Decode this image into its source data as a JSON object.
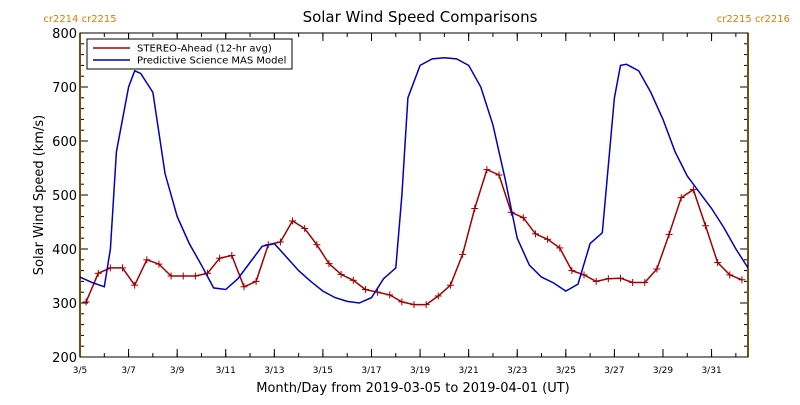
{
  "chart_data": {
    "type": "line",
    "title": "Solar Wind Speed Comparisons",
    "xlabel": "Month/Day from 2019-03-05 to 2019-04-01 (UT)",
    "ylabel": "Solar Wind Speed (km/s)",
    "xlim": [
      "2019-03-05",
      "2019-04-01 12:00"
    ],
    "ylim": [
      200,
      800
    ],
    "yticks": [
      200,
      300,
      400,
      500,
      600,
      700,
      800
    ],
    "xticks": [
      "2019-03-05",
      "2019-03-07",
      "2019-03-09",
      "2019-03-11",
      "2019-03-13",
      "2019-03-15",
      "2019-03-17",
      "2019-03-19",
      "2019-03-21",
      "2019-03-23",
      "2019-03-25",
      "2019-03-27",
      "2019-03-29",
      "2019-03-31"
    ],
    "xticklabels": [
      "3/5",
      "3/7",
      "3/9",
      "3/11",
      "3/13",
      "3/15",
      "3/17",
      "3/19",
      "3/21",
      "3/23",
      "3/25",
      "3/27",
      "3/29",
      "3/31"
    ],
    "legend_position": "top-left",
    "grid": false,
    "carrington_markers": [
      {
        "date": "2019-03-05",
        "labels": [
          "cr2214",
          "cr2215"
        ],
        "color": "#e8a020"
      },
      {
        "date": "2019-04-01 12:00",
        "labels": [
          "cr2215",
          "cr2216"
        ],
        "color": "#e8a020"
      }
    ],
    "series": [
      {
        "name": "STEREO-Ahead (12-hr avg)",
        "color": "#a00000",
        "marker": "+",
        "x": [
          "2019-03-05 06:00",
          "2019-03-05 18:00",
          "2019-03-06 06:00",
          "2019-03-06 18:00",
          "2019-03-07 06:00",
          "2019-03-07 18:00",
          "2019-03-08 06:00",
          "2019-03-08 18:00",
          "2019-03-09 06:00",
          "2019-03-09 18:00",
          "2019-03-10 06:00",
          "2019-03-10 18:00",
          "2019-03-11 06:00",
          "2019-03-11 18:00",
          "2019-03-12 06:00",
          "2019-03-12 18:00",
          "2019-03-13 06:00",
          "2019-03-13 18:00",
          "2019-03-14 06:00",
          "2019-03-14 18:00",
          "2019-03-15 06:00",
          "2019-03-15 18:00",
          "2019-03-16 06:00",
          "2019-03-16 18:00",
          "2019-03-17 06:00",
          "2019-03-17 18:00",
          "2019-03-18 06:00",
          "2019-03-18 18:00",
          "2019-03-19 06:00",
          "2019-03-19 18:00",
          "2019-03-20 06:00",
          "2019-03-20 18:00",
          "2019-03-21 06:00",
          "2019-03-21 18:00",
          "2019-03-22 06:00",
          "2019-03-22 18:00",
          "2019-03-23 06:00",
          "2019-03-23 18:00",
          "2019-03-24 06:00",
          "2019-03-24 18:00",
          "2019-03-25 06:00",
          "2019-03-25 18:00",
          "2019-03-26 06:00",
          "2019-03-26 18:00",
          "2019-03-27 06:00",
          "2019-03-27 18:00",
          "2019-03-28 06:00",
          "2019-03-28 18:00",
          "2019-03-29 06:00",
          "2019-03-29 18:00",
          "2019-03-30 06:00",
          "2019-03-30 18:00",
          "2019-03-31 06:00",
          "2019-03-31 18:00",
          "2019-04-01 06:00"
        ],
        "values": [
          302,
          355,
          365,
          365,
          333,
          380,
          372,
          350,
          350,
          350,
          355,
          383,
          388,
          330,
          340,
          408,
          413,
          452,
          438,
          408,
          373,
          353,
          342,
          325,
          320,
          315,
          302,
          297,
          297,
          313,
          333,
          390,
          475,
          547,
          537,
          468,
          458,
          428,
          418,
          402,
          360,
          352,
          340,
          345,
          346,
          338,
          338,
          363,
          427,
          495,
          510,
          443,
          375,
          352,
          343
        ]
      },
      {
        "name": "Predictive Science MAS Model",
        "color": "#0000c0",
        "x": [
          "2019-03-05 00:00",
          "2019-03-05 12:00",
          "2019-03-06 00:00",
          "2019-03-06 06:00",
          "2019-03-06 12:00",
          "2019-03-07 00:00",
          "2019-03-07 06:00",
          "2019-03-07 12:00",
          "2019-03-08 00:00",
          "2019-03-08 12:00",
          "2019-03-09 00:00",
          "2019-03-09 12:00",
          "2019-03-10 00:00",
          "2019-03-10 12:00",
          "2019-03-11 00:00",
          "2019-03-11 12:00",
          "2019-03-12 00:00",
          "2019-03-12 12:00",
          "2019-03-13 00:00",
          "2019-03-13 12:00",
          "2019-03-14 00:00",
          "2019-03-14 12:00",
          "2019-03-15 00:00",
          "2019-03-15 12:00",
          "2019-03-16 00:00",
          "2019-03-16 12:00",
          "2019-03-17 00:00",
          "2019-03-17 12:00",
          "2019-03-18 00:00",
          "2019-03-18 06:00",
          "2019-03-18 12:00",
          "2019-03-19 00:00",
          "2019-03-19 12:00",
          "2019-03-20 00:00",
          "2019-03-20 12:00",
          "2019-03-21 00:00",
          "2019-03-21 12:00",
          "2019-03-22 00:00",
          "2019-03-22 12:00",
          "2019-03-23 00:00",
          "2019-03-23 12:00",
          "2019-03-24 00:00",
          "2019-03-24 12:00",
          "2019-03-25 00:00",
          "2019-03-25 12:00",
          "2019-03-26 00:00",
          "2019-03-26 12:00",
          "2019-03-27 00:00",
          "2019-03-27 06:00",
          "2019-03-27 12:00",
          "2019-03-28 00:00",
          "2019-03-28 12:00",
          "2019-03-29 00:00",
          "2019-03-29 12:00",
          "2019-03-30 00:00",
          "2019-03-30 12:00",
          "2019-03-31 00:00",
          "2019-03-31 12:00",
          "2019-04-01 00:00",
          "2019-04-01 12:00"
        ],
        "values": [
          348,
          338,
          330,
          400,
          580,
          700,
          730,
          725,
          690,
          540,
          460,
          410,
          370,
          328,
          325,
          345,
          375,
          405,
          410,
          385,
          360,
          340,
          322,
          310,
          303,
          300,
          310,
          345,
          365,
          500,
          680,
          740,
          752,
          754,
          752,
          740,
          700,
          630,
          530,
          420,
          370,
          348,
          337,
          322,
          335,
          410,
          430,
          680,
          740,
          742,
          730,
          690,
          640,
          580,
          535,
          505,
          475,
          440,
          400,
          365
        ]
      }
    ]
  }
}
